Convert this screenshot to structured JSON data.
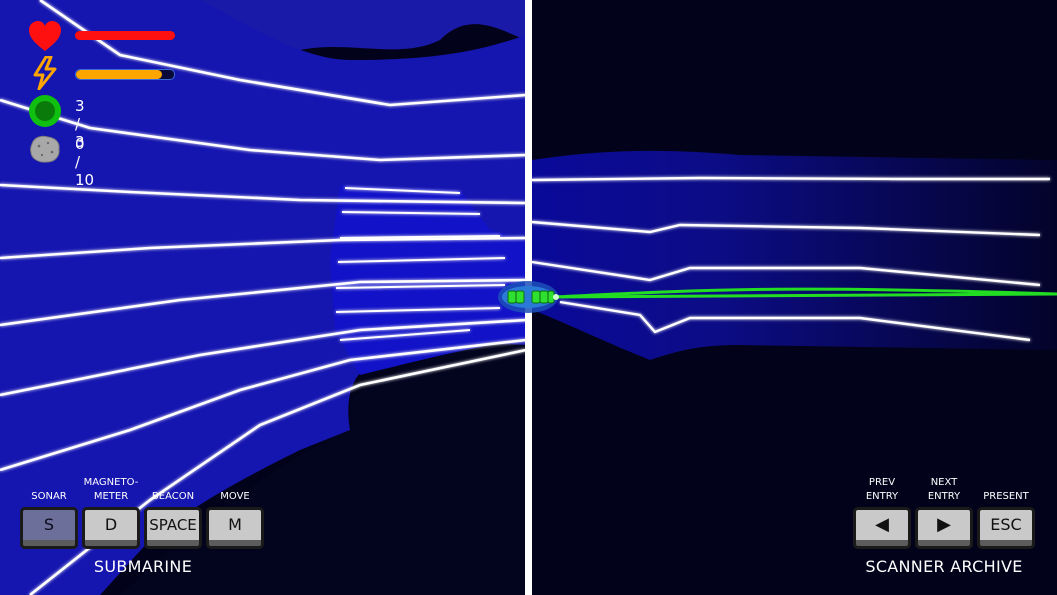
{
  "status": {
    "health_level": 1.0,
    "energy_level": 0.88,
    "beacons_text": "3 / 3",
    "specimens_text": "0 / 10"
  },
  "submarine": {
    "title": "SUBMARINE",
    "controls": [
      {
        "label": "SONAR",
        "key": "S"
      },
      {
        "label": "MAGNETO-\nMETER",
        "key": "D"
      },
      {
        "label": "BEACON",
        "key": "SPACE"
      },
      {
        "label": "MOVE",
        "key": "M"
      }
    ]
  },
  "archive": {
    "title": "SCANNER ARCHIVE",
    "controls": [
      {
        "label": "PREV\nENTRY",
        "key": "◀"
      },
      {
        "label": "NEXT\nENTRY",
        "key": "▶"
      },
      {
        "label": "PRESENT",
        "key": "ESC"
      }
    ]
  },
  "colors": {
    "health": "#ff1010",
    "energy": "#ffa500",
    "beacon": "#10c010",
    "water": "#1a1ab8",
    "contour": "#ffffff",
    "laser": "#22dd22"
  },
  "icons": [
    "heart-icon",
    "lightning-icon",
    "beacon-icon",
    "rock-icon"
  ]
}
